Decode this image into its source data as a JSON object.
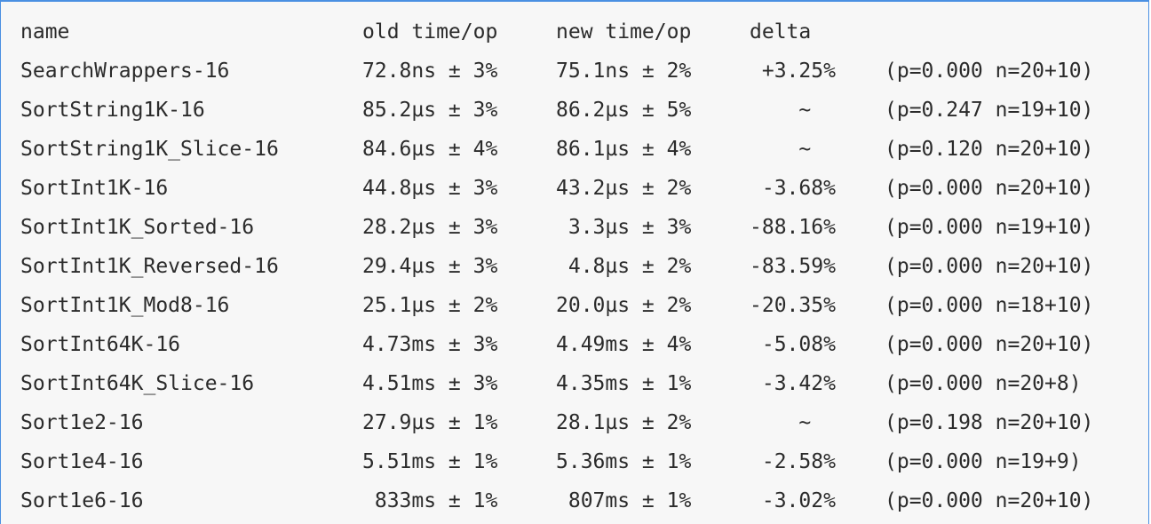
{
  "headers": {
    "name": "name",
    "old": "old time/op",
    "new": "new time/op",
    "delta": "delta"
  },
  "rows": [
    {
      "name": "SearchWrappers-16",
      "old": "72.8ns ± 3%",
      "new": "75.1ns ± 2%",
      "delta": " +3.25%",
      "stat": "(p=0.000 n=20+10)"
    },
    {
      "name": "SortString1K-16",
      "old": "85.2µs ± 3%",
      "new": "86.2µs ± 5%",
      "delta": "    ~",
      "stat": "(p=0.247 n=19+10)"
    },
    {
      "name": "SortString1K_Slice-16",
      "old": "84.6µs ± 4%",
      "new": "86.1µs ± 4%",
      "delta": "    ~",
      "stat": "(p=0.120 n=20+10)"
    },
    {
      "name": "SortInt1K-16",
      "old": "44.8µs ± 3%",
      "new": "43.2µs ± 2%",
      "delta": " -3.68%",
      "stat": "(p=0.000 n=20+10)"
    },
    {
      "name": "SortInt1K_Sorted-16",
      "old": "28.2µs ± 3%",
      "new": " 3.3µs ± 3%",
      "delta": "-88.16%",
      "stat": "(p=0.000 n=19+10)"
    },
    {
      "name": "SortInt1K_Reversed-16",
      "old": "29.4µs ± 3%",
      "new": " 4.8µs ± 2%",
      "delta": "-83.59%",
      "stat": "(p=0.000 n=20+10)"
    },
    {
      "name": "SortInt1K_Mod8-16",
      "old": "25.1µs ± 2%",
      "new": "20.0µs ± 2%",
      "delta": "-20.35%",
      "stat": "(p=0.000 n=18+10)"
    },
    {
      "name": "SortInt64K-16",
      "old": "4.73ms ± 3%",
      "new": "4.49ms ± 4%",
      "delta": " -5.08%",
      "stat": "(p=0.000 n=20+10)"
    },
    {
      "name": "SortInt64K_Slice-16",
      "old": "4.51ms ± 3%",
      "new": "4.35ms ± 1%",
      "delta": " -3.42%",
      "stat": "(p=0.000 n=20+8)"
    },
    {
      "name": "Sort1e2-16",
      "old": "27.9µs ± 1%",
      "new": "28.1µs ± 2%",
      "delta": "    ~",
      "stat": "(p=0.198 n=20+10)"
    },
    {
      "name": "Sort1e4-16",
      "old": "5.51ms ± 1%",
      "new": "5.36ms ± 1%",
      "delta": " -2.58%",
      "stat": "(p=0.000 n=19+9)"
    },
    {
      "name": "Sort1e6-16",
      "old": " 833ms ± 1%",
      "new": " 807ms ± 1%",
      "delta": " -3.02%",
      "stat": "(p=0.000 n=20+10)"
    }
  ]
}
